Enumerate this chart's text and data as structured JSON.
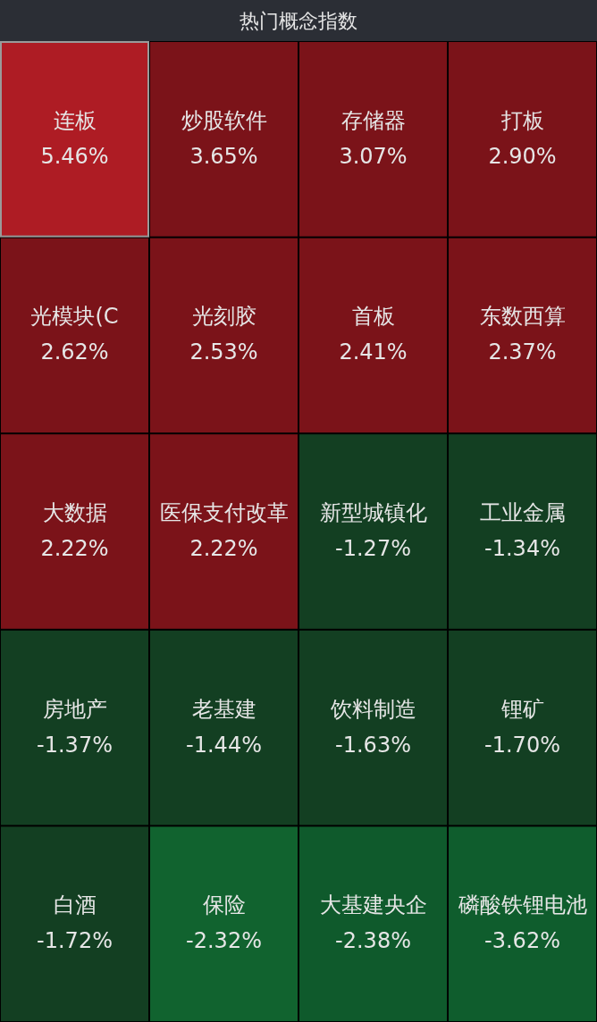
{
  "chart_data": {
    "type": "other",
    "title": "热门概念指数",
    "categories": [
      "连板",
      "炒股软件",
      "存储器",
      "打板",
      "光模块(C",
      "光刻胶",
      "首板",
      "东数西算",
      "大数据",
      "医保支付改革",
      "新型城镇化",
      "工业金属",
      "房地产",
      "老基建",
      "饮料制造",
      "锂矿",
      "白酒",
      "保险",
      "大基建央企",
      "磷酸铁锂电池"
    ],
    "values": [
      5.46,
      3.65,
      3.07,
      2.9,
      2.62,
      2.53,
      2.41,
      2.37,
      2.22,
      2.22,
      -1.27,
      -1.34,
      -1.37,
      -1.44,
      -1.63,
      -1.7,
      -1.72,
      -2.32,
      -2.38,
      -3.62
    ],
    "value_labels": [
      "5.46%",
      "3.65%",
      "3.07%",
      "2.90%",
      "2.62%",
      "2.53%",
      "2.41%",
      "2.37%",
      "2.22%",
      "2.22%",
      "-1.27%",
      "-1.34%",
      "-1.37%",
      "-1.44%",
      "-1.63%",
      "-1.70%",
      "-1.72%",
      "-2.32%",
      "-2.38%",
      "-3.62%"
    ],
    "colors": [
      "#ae1c24",
      "#7b1319",
      "#7b1319",
      "#7b1319",
      "#7b1319",
      "#7b1319",
      "#7b1319",
      "#7b1319",
      "#7b1319",
      "#7b1319",
      "#133f22",
      "#133f22",
      "#133f22",
      "#133f22",
      "#133f22",
      "#133f22",
      "#133f22",
      "#11632f",
      "#0f5a2c",
      "#0f5d2d"
    ]
  }
}
